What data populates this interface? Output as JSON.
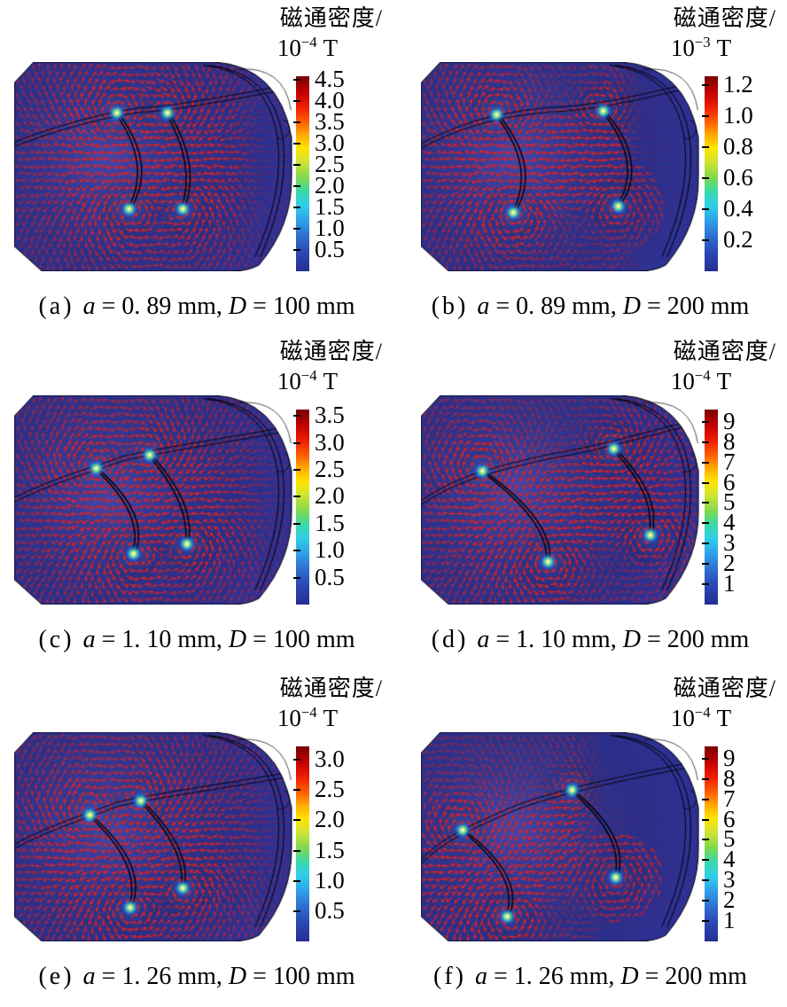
{
  "figure": {
    "colorbar_title": "磁通密度/",
    "panels": [
      {
        "id": "a",
        "caption": {
          "index": "(a)",
          "var1": "a",
          "val1": " = 0. 89 mm, ",
          "var2": "D",
          "val2": " = 100 mm"
        },
        "colorbar": {
          "mantissa": "10",
          "exponent": "−4",
          "unit": "T",
          "scale_max": 4.58,
          "tick_values": [
            4.5,
            4.0,
            3.5,
            3.0,
            2.5,
            2.0,
            1.5,
            1.0,
            0.5
          ],
          "tick_labels": [
            "4.5",
            "4.0",
            "3.5",
            "3.0",
            "2.5",
            "2.0",
            "1.5",
            "1.0",
            "0.5"
          ]
        }
      },
      {
        "id": "b",
        "caption": {
          "index": "(b)",
          "var1": "a",
          "val1": " = 0. 89 mm, ",
          "var2": "D",
          "val2": " = 200 mm"
        },
        "colorbar": {
          "mantissa": "10",
          "exponent": "−3",
          "unit": "T",
          "scale_max": 1.26,
          "tick_values": [
            1.2,
            1.0,
            0.8,
            0.6,
            0.4,
            0.2
          ],
          "tick_labels": [
            "1.2",
            "1.0",
            "0.8",
            "0.6",
            "0.4",
            "0.2"
          ]
        }
      },
      {
        "id": "c",
        "caption": {
          "index": "(c)",
          "var1": "a",
          "val1": " = 1. 10 mm, ",
          "var2": "D",
          "val2": " = 100 mm"
        },
        "colorbar": {
          "mantissa": "10",
          "exponent": "−4",
          "unit": "T",
          "scale_max": 3.62,
          "tick_values": [
            3.5,
            3.0,
            2.5,
            2.0,
            1.5,
            1.0,
            0.5
          ],
          "tick_labels": [
            "3.5",
            "3.0",
            "2.5",
            "2.0",
            "1.5",
            "1.0",
            "0.5"
          ]
        }
      },
      {
        "id": "d",
        "caption": {
          "index": "(d)",
          "var1": "a",
          "val1": " = 1. 10 mm, ",
          "var2": "D",
          "val2": " = 200 mm"
        },
        "colorbar": {
          "mantissa": "10",
          "exponent": "−4",
          "unit": "T",
          "scale_max": 9.6,
          "tick_values": [
            9,
            8,
            7,
            6,
            5,
            4,
            3,
            2,
            1
          ],
          "tick_labels": [
            "9",
            "8",
            "7",
            "6",
            "5",
            "4",
            "3",
            "2",
            "1"
          ]
        }
      },
      {
        "id": "e",
        "caption": {
          "index": "(e)",
          "var1": "a",
          "val1": " = 1. 26 mm, ",
          "var2": "D",
          "val2": " = 100 mm"
        },
        "colorbar": {
          "mantissa": "10",
          "exponent": "−4",
          "unit": "T",
          "scale_max": 3.22,
          "tick_values": [
            3.0,
            2.5,
            2.0,
            1.5,
            1.0,
            0.5
          ],
          "tick_labels": [
            "3.0",
            "2.5",
            "2.0",
            "1.5",
            "1.0",
            "0.5"
          ]
        }
      },
      {
        "id": "f",
        "caption": {
          "index": "(f)",
          "var1": "a",
          "val1": " = 1. 26 mm, ",
          "var2": "D",
          "val2": " = 200 mm"
        },
        "colorbar": {
          "mantissa": "10",
          "exponent": "−4",
          "unit": "T",
          "scale_max": 9.6,
          "tick_values": [
            9,
            8,
            7,
            6,
            5,
            4,
            3,
            2,
            1
          ],
          "tick_labels": [
            "9",
            "8",
            "7",
            "6",
            "5",
            "4",
            "3",
            "2",
            "1"
          ]
        }
      }
    ]
  },
  "colors": {
    "background_plot": "#2e3192",
    "arrow": "#e4231d",
    "line": "#000000",
    "colormap": "jet"
  },
  "chart_data": [
    {
      "type": "quiver",
      "panel": "(a)",
      "caption": "(a) a = 0.89 mm, D = 100 mm",
      "colorbar": {
        "label": "磁通密度",
        "unit": "10^-4 T",
        "ticks": [
          4.5,
          4.0,
          3.5,
          3.0,
          2.5,
          2.0,
          1.5,
          1.0,
          0.5
        ],
        "range": [
          0,
          4.58
        ],
        "colormap": "jet",
        "position": "right"
      },
      "field": {
        "poles": [
          [
            0.369,
            0.243
          ],
          [
            0.413,
            0.702
          ],
          [
            0.551,
            0.243
          ],
          [
            0.606,
            0.702
          ]
        ],
        "strengths": [
          1,
          -1,
          0.65,
          -0.65
        ],
        "bulges": [
          0.115,
          0.085
        ],
        "fade_start": 0.8,
        "fade_low": 0.35
      }
    },
    {
      "type": "quiver",
      "panel": "(b)",
      "caption": "(b) a = 0.89 mm, D = 200 mm",
      "colorbar": {
        "label": "磁通密度",
        "unit": "10^-3 T",
        "ticks": [
          1.2,
          1.0,
          0.8,
          0.6,
          0.4,
          0.2
        ],
        "range": [
          0,
          1.26
        ],
        "colormap": "jet",
        "position": "right"
      },
      "field": {
        "poles": [
          [
            0.272,
            0.251
          ],
          [
            0.332,
            0.719
          ],
          [
            0.655,
            0.234
          ],
          [
            0.709,
            0.689
          ]
        ],
        "strengths": [
          1,
          -1,
          0.6,
          -0.6
        ],
        "bulges": [
          0.125,
          0.13
        ],
        "fade_start": 0.7,
        "fade_low": 0.12
      }
    },
    {
      "type": "quiver",
      "panel": "(c)",
      "caption": "(c) a = 1.10 mm, D = 100 mm",
      "colorbar": {
        "label": "磁通密度",
        "unit": "10^-4 T",
        "ticks": [
          3.5,
          3.0,
          2.5,
          2.0,
          1.5,
          1.0,
          0.5
        ],
        "range": [
          0,
          3.62
        ],
        "colormap": "jet",
        "position": "right"
      },
      "field": {
        "poles": [
          [
            0.295,
            0.349
          ],
          [
            0.429,
            0.757
          ],
          [
            0.487,
            0.285
          ],
          [
            0.621,
            0.71
          ]
        ],
        "strengths": [
          1,
          -1,
          0.65,
          -0.65
        ],
        "bulges": [
          0.12,
          0.09
        ],
        "fade_start": 0.85,
        "fade_low": 0.4
      }
    },
    {
      "type": "quiver",
      "panel": "(d)",
      "caption": "(d) a = 1.10 mm, D = 200 mm",
      "colorbar": {
        "label": "磁通密度",
        "unit": "10^-4 T",
        "ticks": [
          9,
          8,
          7,
          6,
          5,
          4,
          3,
          2,
          1
        ],
        "range": [
          0,
          9.6
        ],
        "colormap": "jet",
        "position": "right"
      },
      "field": {
        "poles": [
          [
            0.221,
            0.362
          ],
          [
            0.457,
            0.795
          ],
          [
            0.693,
            0.255
          ],
          [
            0.824,
            0.668
          ]
        ],
        "strengths": [
          1,
          -1,
          0.6,
          -0.6
        ],
        "bulges": [
          0.13,
          0.1
        ],
        "fade_start": 0.93,
        "fade_low": 0.5
      }
    },
    {
      "type": "quiver",
      "panel": "(e)",
      "caption": "(e) a = 1.26 mm, D = 100 mm",
      "colorbar": {
        "label": "磁通密度",
        "unit": "10^-4 T",
        "ticks": [
          3.0,
          2.5,
          2.0,
          1.5,
          1.0,
          0.5
        ],
        "range": [
          0,
          3.22
        ],
        "colormap": "jet",
        "position": "right"
      },
      "field": {
        "poles": [
          [
            0.272,
            0.396
          ],
          [
            0.417,
            0.838
          ],
          [
            0.455,
            0.328
          ],
          [
            0.606,
            0.745
          ]
        ],
        "strengths": [
          1,
          -1,
          0.65,
          -0.65
        ],
        "bulges": [
          0.13,
          0.1
        ],
        "fade_start": 0.85,
        "fade_low": 0.4
      }
    },
    {
      "type": "quiver",
      "panel": "(f)",
      "caption": "(f) a = 1.26 mm, D = 200 mm",
      "colorbar": {
        "label": "磁通密度",
        "unit": "10^-4 T",
        "ticks": [
          9,
          8,
          7,
          6,
          5,
          4,
          3,
          2,
          1
        ],
        "range": [
          0,
          9.6
        ],
        "colormap": "jet",
        "position": "right"
      },
      "field": {
        "poles": [
          [
            0.15,
            0.468
          ],
          [
            0.31,
            0.881
          ],
          [
            0.543,
            0.277
          ],
          [
            0.7,
            0.694
          ]
        ],
        "strengths": [
          1,
          -1,
          0.4,
          -0.9
        ],
        "bulges": [
          0.14,
          0.125
        ],
        "fade_start": 0.55,
        "fade_low": 0.1
      }
    }
  ]
}
